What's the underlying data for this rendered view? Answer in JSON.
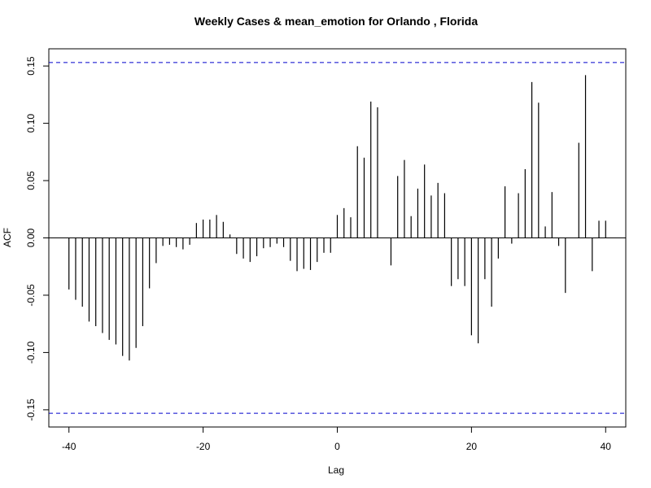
{
  "chart_data": {
    "type": "bar",
    "title": "Weekly Cases & mean_emotion for Orlando , Florida",
    "xlabel": "Lag",
    "ylabel": "ACF",
    "xlim": [
      -43,
      43
    ],
    "ylim": [
      -0.165,
      0.165
    ],
    "x_ticks": [
      -40,
      -20,
      0,
      20,
      40
    ],
    "x_tick_labels": [
      "-40",
      "-20",
      "0",
      "20",
      "40"
    ],
    "y_ticks": [
      -0.15,
      -0.1,
      -0.05,
      0.0,
      0.05,
      0.1,
      0.15
    ],
    "y_tick_labels": [
      "-0.15",
      "-0.10",
      "-0.05",
      "0.00",
      "0.05",
      "0.10",
      "0.15"
    ],
    "confidence_bound": 0.153,
    "confidence_color": "#0000cc",
    "bar_color": "#000000",
    "lags": [
      -40,
      -39,
      -38,
      -37,
      -36,
      -35,
      -34,
      -33,
      -32,
      -31,
      -30,
      -29,
      -28,
      -27,
      -26,
      -25,
      -24,
      -23,
      -22,
      -21,
      -20,
      -19,
      -18,
      -17,
      -16,
      -15,
      -14,
      -13,
      -12,
      -11,
      -10,
      -9,
      -8,
      -7,
      -6,
      -5,
      -4,
      -3,
      -2,
      -1,
      0,
      1,
      2,
      3,
      4,
      5,
      6,
      7,
      8,
      9,
      10,
      11,
      12,
      13,
      14,
      15,
      16,
      17,
      18,
      19,
      20,
      21,
      22,
      23,
      24,
      25,
      26,
      27,
      28,
      29,
      30,
      31,
      32,
      33,
      34,
      35,
      36,
      37,
      38,
      39,
      40
    ],
    "values": [
      -0.045,
      -0.054,
      -0.06,
      -0.073,
      -0.077,
      -0.083,
      -0.089,
      -0.093,
      -0.103,
      -0.107,
      -0.096,
      -0.077,
      -0.044,
      -0.022,
      -0.007,
      -0.006,
      -0.008,
      -0.01,
      -0.006,
      0.013,
      0.016,
      0.016,
      0.02,
      0.014,
      0.003,
      -0.014,
      -0.018,
      -0.021,
      -0.016,
      -0.009,
      -0.008,
      -0.005,
      -0.008,
      -0.02,
      -0.029,
      -0.027,
      -0.028,
      -0.021,
      -0.013,
      -0.013,
      0.02,
      0.026,
      0.018,
      0.08,
      0.07,
      0.119,
      0.114,
      0.0,
      -0.024,
      0.054,
      0.068,
      0.019,
      0.043,
      0.064,
      0.037,
      0.048,
      0.039,
      -0.042,
      -0.036,
      -0.042,
      -0.085,
      -0.092,
      -0.036,
      -0.06,
      -0.018,
      0.045,
      -0.005,
      0.039,
      0.06,
      0.136,
      0.118,
      0.01,
      0.04,
      -0.007,
      -0.048,
      0.0,
      0.083,
      0.142,
      -0.029,
      0.015,
      0.015
    ]
  }
}
